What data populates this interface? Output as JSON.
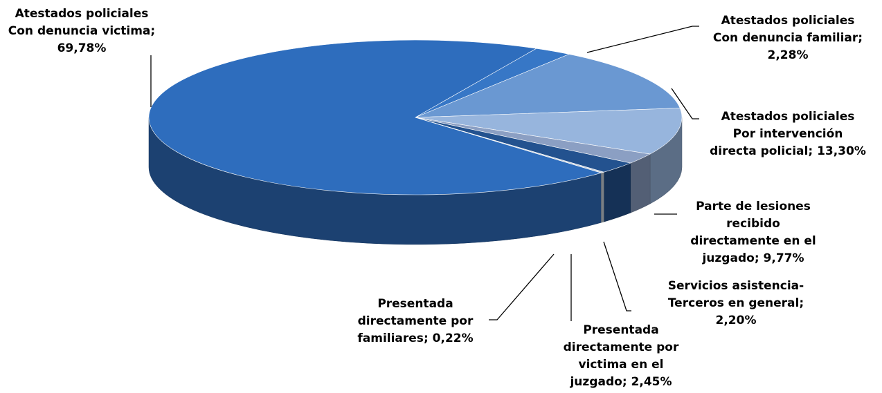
{
  "chart_data": {
    "type": "pie3d",
    "categories": [
      "Atestados policiales Con denuncia victima",
      "Atestados policiales Con denuncia familiar",
      "Atestados policiales Por intervención directa policial",
      "Parte de lesiones recibido directamente en el juzgado",
      "Servicios asistencia-Terceros en general",
      "Presentada directamente por victima en el juzgado",
      "Presentada directamente por familiares"
    ],
    "values": [
      69.78,
      2.28,
      13.3,
      9.77,
      2.2,
      2.45,
      0.22
    ],
    "value_labels": [
      "69,78%",
      "2,28%",
      "13,30%",
      "9,77%",
      "2,20%",
      "2,45%",
      "0,22%"
    ],
    "label_separator": "; ",
    "colors": [
      "#2e6dbd",
      "#3777c6",
      "#6a98d2",
      "#97b5dd",
      "#8b9fc3",
      "#23528f",
      "#c9d3de"
    ]
  }
}
